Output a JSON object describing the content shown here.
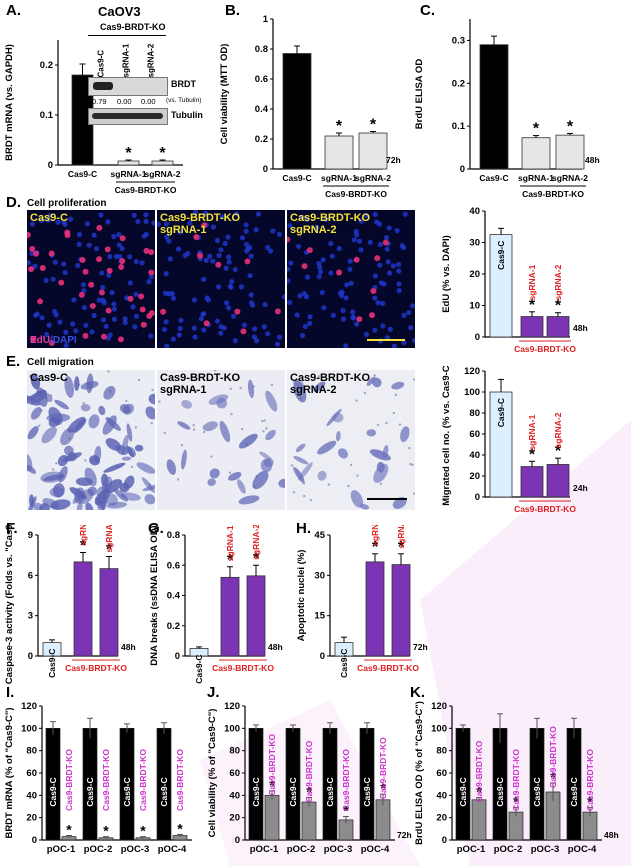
{
  "figure": {
    "colors": {
      "black": "#000000",
      "light": "#dcefff",
      "purple": "#7b34b3",
      "gray": "#8c8c8c",
      "lightgray": "#e6e6e6",
      "magenta": "#cc33cc",
      "red": "#dd2020",
      "yellow": "#f2e33a",
      "blue": "#1b2a8a"
    },
    "panels": {
      "A": "A.",
      "B": "B.",
      "C": "C.",
      "D": "D.",
      "E": "E.",
      "F": "F.",
      "G": "G.",
      "H": "H.",
      "I": "I.",
      "J": "J.",
      "K": "K."
    },
    "sig": "*",
    "group_label": "Cas9-BRDT-KO",
    "panel_d_title": "Cell proliferation",
    "panel_e_title": "Cell migration",
    "panel_a_title": "CaOV3",
    "blot": {
      "header": "Cas9-BRDT-KO",
      "lanes": [
        "Cas9-C",
        "sgRNA-1",
        "sgRNA-2"
      ],
      "brdt": "BRDT",
      "tubulin": "Tubulin",
      "ratios": [
        "0.79",
        "0.00",
        "0.00"
      ],
      "ratio_note": "(vs. Tubulin)"
    },
    "images": {
      "d": [
        {
          "line1": "Cas9-C",
          "line2": ""
        },
        {
          "line1": "Cas9-BRDT-KO",
          "line2": "sgRNA-1"
        },
        {
          "line1": "Cas9-BRDT-KO",
          "line2": "sgRNA-2"
        }
      ],
      "d_stain": {
        "a": "EdU",
        "b": "/DAPI"
      },
      "e": [
        {
          "line1": "Cas9-C",
          "line2": ""
        },
        {
          "line1": "Cas9-BRDT-KO",
          "line2": "sgRNA-1"
        },
        {
          "line1": "Cas9-BRDT-KO",
          "line2": "sgRNA-2"
        }
      ]
    }
  },
  "chart_data": [
    {
      "id": "A",
      "type": "bar",
      "ylabel": "BRDT mRNA (vs. GAPDH)",
      "ylim": [
        0,
        0.25
      ],
      "yticks": [
        "0",
        "0.1",
        "0.2"
      ],
      "categories": [
        "Cas9-C",
        "sgRNA-1",
        "sgRNA-2"
      ],
      "values": [
        0.18,
        0.008,
        0.008
      ],
      "errors": [
        0.022,
        0.002,
        0.002
      ],
      "group": "Cas9-BRDT-KO",
      "time": ""
    },
    {
      "id": "B",
      "type": "bar",
      "ylabel": "Cell viability (MTT OD)",
      "ylim": [
        0,
        1
      ],
      "yticks": [
        "0",
        "0.2",
        "0.4",
        "0.6",
        "0.8",
        "1"
      ],
      "categories": [
        "Cas9-C",
        "sgRNA-1",
        "sgRNA-2"
      ],
      "values": [
        0.77,
        0.22,
        0.24
      ],
      "errors": [
        0.05,
        0.02,
        0.01
      ],
      "group": "Cas9-BRDT-KO",
      "time": "72h"
    },
    {
      "id": "C",
      "type": "bar",
      "ylabel": "BrdU ELISA OD",
      "ylim": [
        0,
        0.35
      ],
      "yticks": [
        "0",
        "0.1",
        "0.2",
        "0.3"
      ],
      "categories": [
        "Cas9-C",
        "sgRNA-1",
        "sgRNA-2"
      ],
      "values": [
        0.29,
        0.073,
        0.079
      ],
      "errors": [
        0.02,
        0.005,
        0.004
      ],
      "group": "Cas9-BRDT-KO",
      "time": "48h"
    },
    {
      "id": "D",
      "type": "bar",
      "ylabel": "EdU (% vs. DAPI)",
      "ylim": [
        0,
        40
      ],
      "yticks": [
        "0",
        "10",
        "20",
        "30",
        "40"
      ],
      "categories": [
        "Cas9-C",
        "sgRNA-1",
        "sgRNA-2"
      ],
      "values": [
        32.5,
        6.5,
        6.5
      ],
      "errors": [
        2,
        1.5,
        1.2
      ],
      "group": "Cas9-BRDT-KO",
      "time": "48h"
    },
    {
      "id": "E",
      "type": "bar",
      "ylabel": "Migrated cell no. (% vs. Cas9-C)",
      "ylim": [
        0,
        120
      ],
      "yticks": [
        "0",
        "20",
        "40",
        "60",
        "80",
        "100",
        "120"
      ],
      "categories": [
        "Cas9-C",
        "sgRNA-1",
        "sgRNA-2"
      ],
      "values": [
        100,
        29,
        31
      ],
      "errors": [
        12,
        5,
        6
      ],
      "group": "Cas9-BRDT-KO",
      "time": "24h"
    },
    {
      "id": "F",
      "type": "bar",
      "ylabel": "Caspase-3 activity (Folds vs. \"Cas9-C\")",
      "ylim": [
        0,
        9
      ],
      "yticks": [
        "0",
        "3",
        "6",
        "9"
      ],
      "categories": [
        "Cas9-C",
        "sgRNA-1",
        "sgRNA-2"
      ],
      "values": [
        1,
        7,
        6.5
      ],
      "errors": [
        0.2,
        0.7,
        0.9
      ],
      "group": "Cas9-BRDT-KO",
      "time": "48h"
    },
    {
      "id": "G",
      "type": "bar",
      "ylabel": "DNA breaks (ssDNA ELISA OD)",
      "ylim": [
        0,
        0.8
      ],
      "yticks": [
        "0",
        "0.2",
        "0.4",
        "0.6",
        "0.8"
      ],
      "categories": [
        "Cas9-C",
        "sgRNA-1",
        "sgRNA-2"
      ],
      "values": [
        0.05,
        0.52,
        0.53
      ],
      "errors": [
        0.01,
        0.07,
        0.07
      ],
      "group": "Cas9-BRDT-KO",
      "time": "48h"
    },
    {
      "id": "H",
      "type": "bar",
      "ylabel": "Apoptotic nuclei (%)",
      "ylim": [
        0,
        45
      ],
      "yticks": [
        "0",
        "15",
        "30",
        "45"
      ],
      "categories": [
        "Cas9-C",
        "sgRNA-1",
        "sgRNA-2"
      ],
      "values": [
        5,
        35,
        34
      ],
      "errors": [
        2,
        3,
        4
      ],
      "group": "Cas9-BRDT-KO",
      "time": "72h"
    },
    {
      "id": "I",
      "type": "bar",
      "ylabel": "BRDT mRNA (% of \"Cas9-C\")",
      "ylim": [
        0,
        120
      ],
      "yticks": [
        "0",
        "20",
        "40",
        "60",
        "80",
        "100",
        "120"
      ],
      "categories": [
        "pOC-1",
        "pOC-2",
        "pOC-3",
        "pOC-4"
      ],
      "series": [
        {
          "name": "Cas9-C",
          "values": [
            100,
            100,
            100,
            100
          ],
          "errors": [
            6,
            9,
            4,
            5
          ]
        },
        {
          "name": "Cas9-BRDT-KO",
          "values": [
            3,
            2,
            2,
            4
          ],
          "errors": [
            1,
            1,
            1,
            1
          ]
        }
      ],
      "time": ""
    },
    {
      "id": "J",
      "type": "bar",
      "ylabel": "Cell viability (% of \"Cas9-C\")",
      "ylim": [
        0,
        120
      ],
      "yticks": [
        "0",
        "20",
        "40",
        "60",
        "80",
        "100",
        "120"
      ],
      "categories": [
        "pOC-1",
        "pOC-2",
        "pOC-3",
        "pOC-4"
      ],
      "series": [
        {
          "name": "Cas9-C",
          "values": [
            100,
            100,
            100,
            100
          ],
          "errors": [
            3,
            3,
            5,
            5
          ]
        },
        {
          "name": "Cas9-BRDT-KO",
          "values": [
            40,
            34,
            18,
            36
          ],
          "errors": [
            4,
            4,
            3,
            5
          ]
        }
      ],
      "time": "72h"
    },
    {
      "id": "K",
      "type": "bar",
      "ylabel": "BrdU ELISA OD (% of \"Cas9-C\")",
      "ylim": [
        0,
        120
      ],
      "yticks": [
        "0",
        "20",
        "40",
        "60",
        "80",
        "100",
        "120"
      ],
      "categories": [
        "pOC-1",
        "pOC-2",
        "pOC-3",
        "pOC-4"
      ],
      "series": [
        {
          "name": "Cas9-C",
          "values": [
            100,
            100,
            100,
            100
          ],
          "errors": [
            3,
            13,
            9,
            9
          ]
        },
        {
          "name": "Cas9-BRDT-KO",
          "values": [
            36,
            25,
            43,
            25
          ],
          "errors": [
            2,
            4,
            8,
            4
          ]
        }
      ],
      "time": "48h"
    }
  ]
}
